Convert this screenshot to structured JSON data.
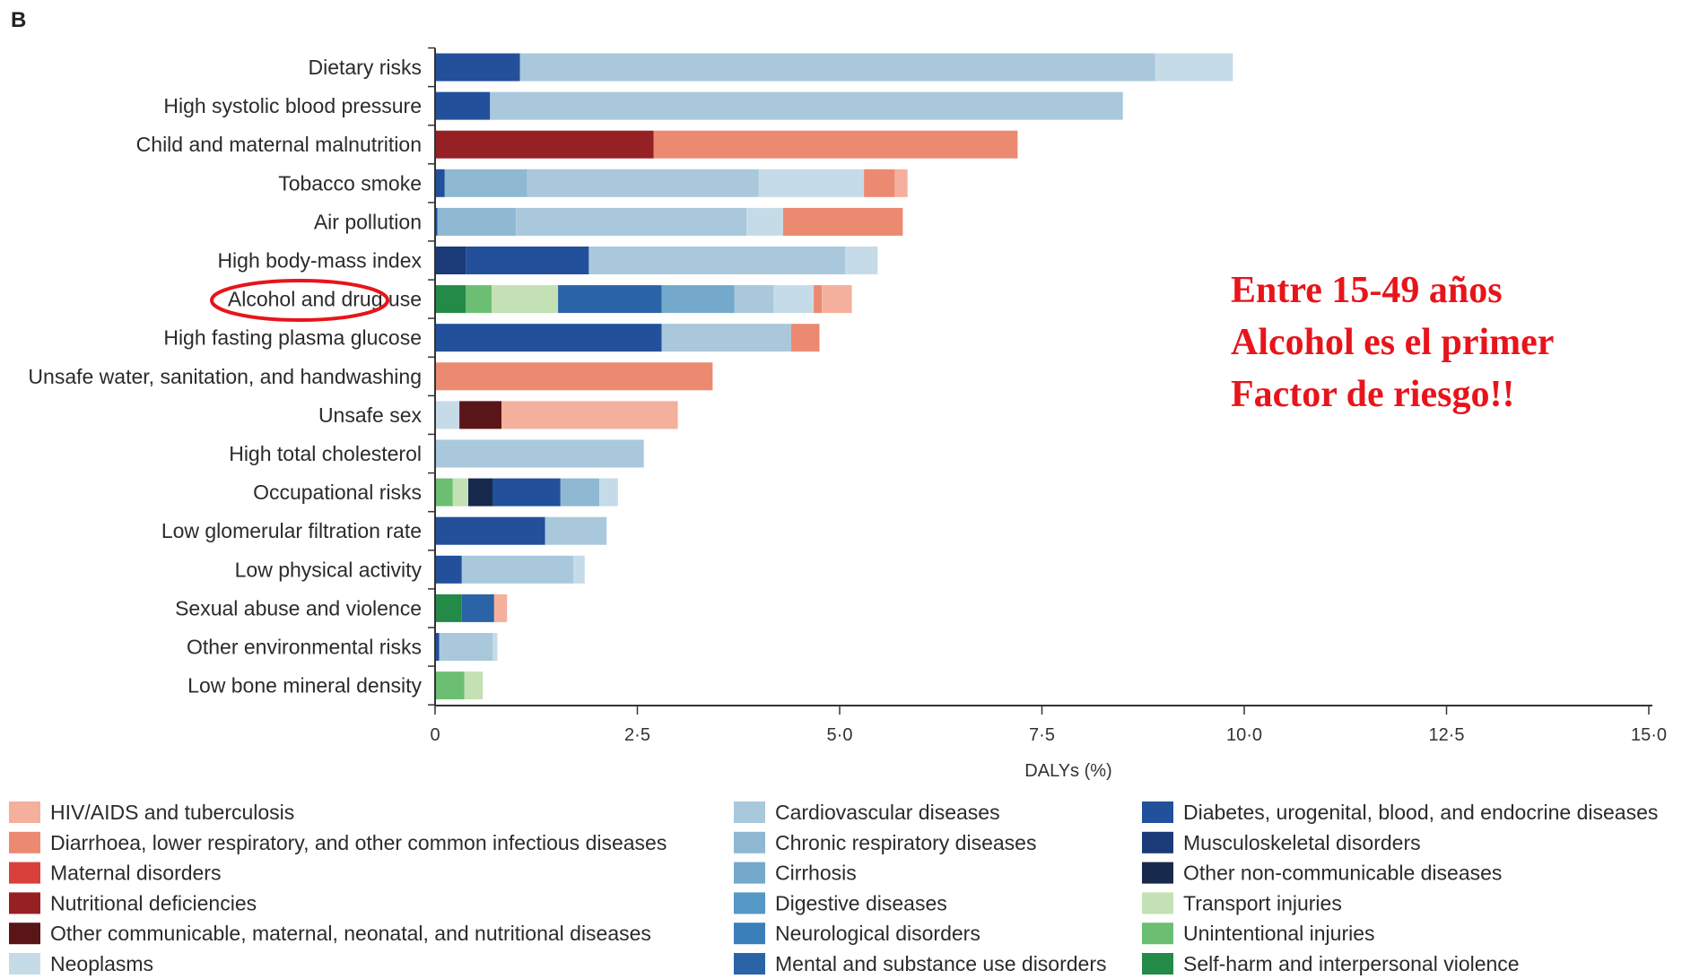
{
  "colors": {
    "HIV/AIDS and tuberculosis": "#f4b09c",
    "Diarrhoea, lower respiratory, and other common infectious diseases": "#eb8a71",
    "Maternal disorders": "#d9403b",
    "Nutritional deficiencies": "#962125",
    "Other communicable, maternal, neonatal, and nutritional diseases": "#5a1518",
    "Neoplasms": "#c6dbe8",
    "Cardiovascular diseases": "#a9c8dc",
    "Chronic respiratory diseases": "#8fb8d3",
    "Cirrhosis": "#74a9cb",
    "Digestive diseases": "#5597c5",
    "Neurological disorders": "#3a7fba",
    "Mental and substance use disorders": "#2a64a6",
    "Diabetes, urogenital, blood, and endocrine diseases": "#22509a",
    "Musculoskeletal disorders": "#1b3a78",
    "Other non-communicable diseases": "#172a4d",
    "Transport injuries": "#c3e1b4",
    "Unintentional injuries": "#6cbf72",
    "Self-harm and interpersonal violence": "#238a47"
  },
  "panel_label": "B",
  "annotation": {
    "line1": "Entre 15-49 años",
    "line2": "Alcohol es el primer",
    "line3": "Factor de riesgo!!"
  },
  "chart_data": {
    "type": "bar",
    "orientation": "horizontal",
    "stacked": true,
    "xlabel": "DALYs (%)",
    "xlim": [
      0,
      15
    ],
    "xticks": [
      "0",
      "2·5",
      "5·0",
      "7·5",
      "10·0",
      "12·5",
      "15·0"
    ],
    "xtick_values": [
      0,
      2.5,
      5,
      7.5,
      10,
      12.5,
      15
    ],
    "highlighted_category": "Alcohol and drug use",
    "categories": [
      {
        "name": "Dietary risks",
        "segments": [
          {
            "cause": "Diabetes, urogenital, blood, and endocrine diseases",
            "value": 1.05
          },
          {
            "cause": "Cardiovascular diseases",
            "value": 7.85
          },
          {
            "cause": "Neoplasms",
            "value": 0.96
          }
        ]
      },
      {
        "name": "High systolic blood pressure",
        "segments": [
          {
            "cause": "Diabetes, urogenital, blood, and endocrine diseases",
            "value": 0.68
          },
          {
            "cause": "Cardiovascular diseases",
            "value": 7.82
          }
        ]
      },
      {
        "name": "Child and maternal malnutrition",
        "segments": [
          {
            "cause": "Nutritional deficiencies",
            "value": 2.7
          },
          {
            "cause": "Diarrhoea, lower respiratory, and other common infectious diseases",
            "value": 4.5
          }
        ]
      },
      {
        "name": "Tobacco smoke",
        "segments": [
          {
            "cause": "Diabetes, urogenital, blood, and endocrine diseases",
            "value": 0.12
          },
          {
            "cause": "Chronic respiratory diseases",
            "value": 1.02
          },
          {
            "cause": "Cardiovascular diseases",
            "value": 2.86
          },
          {
            "cause": "Neoplasms",
            "value": 1.3
          },
          {
            "cause": "Diarrhoea, lower respiratory, and other common infectious diseases",
            "value": 0.38
          },
          {
            "cause": "HIV/AIDS and tuberculosis",
            "value": 0.16
          }
        ]
      },
      {
        "name": "Air pollution",
        "segments": [
          {
            "cause": "Diabetes, urogenital, blood, and endocrine diseases",
            "value": 0.03
          },
          {
            "cause": "Chronic respiratory diseases",
            "value": 0.97
          },
          {
            "cause": "Cardiovascular diseases",
            "value": 2.85
          },
          {
            "cause": "Neoplasms",
            "value": 0.45
          },
          {
            "cause": "Diarrhoea, lower respiratory, and other common infectious diseases",
            "value": 1.48
          }
        ]
      },
      {
        "name": "High body-mass index",
        "segments": [
          {
            "cause": "Musculoskeletal disorders",
            "value": 0.38
          },
          {
            "cause": "Diabetes, urogenital, blood, and endocrine diseases",
            "value": 1.52
          },
          {
            "cause": "Cardiovascular diseases",
            "value": 3.17
          },
          {
            "cause": "Neoplasms",
            "value": 0.4
          }
        ]
      },
      {
        "name": "Alcohol and drug use",
        "segments": [
          {
            "cause": "Self-harm and interpersonal violence",
            "value": 0.38
          },
          {
            "cause": "Unintentional injuries",
            "value": 0.32
          },
          {
            "cause": "Transport injuries",
            "value": 0.82
          },
          {
            "cause": "Mental and substance use disorders",
            "value": 1.28
          },
          {
            "cause": "Cirrhosis",
            "value": 0.9
          },
          {
            "cause": "Cardiovascular diseases",
            "value": 0.48
          },
          {
            "cause": "Neoplasms",
            "value": 0.5
          },
          {
            "cause": "Diarrhoea, lower respiratory, and other common infectious diseases",
            "value": 0.1
          },
          {
            "cause": "HIV/AIDS and tuberculosis",
            "value": 0.37
          }
        ]
      },
      {
        "name": "High fasting plasma glucose",
        "segments": [
          {
            "cause": "Diabetes, urogenital, blood, and endocrine diseases",
            "value": 2.8
          },
          {
            "cause": "Cardiovascular diseases",
            "value": 1.6
          },
          {
            "cause": "Diarrhoea, lower respiratory, and other common infectious diseases",
            "value": 0.35
          }
        ]
      },
      {
        "name": "Unsafe water, sanitation, and handwashing",
        "segments": [
          {
            "cause": "Diarrhoea, lower respiratory, and other common infectious diseases",
            "value": 3.43
          }
        ]
      },
      {
        "name": "Unsafe sex",
        "segments": [
          {
            "cause": "Neoplasms",
            "value": 0.3
          },
          {
            "cause": "Other communicable, maternal, neonatal, and nutritional diseases",
            "value": 0.52
          },
          {
            "cause": "HIV/AIDS and tuberculosis",
            "value": 2.18
          }
        ]
      },
      {
        "name": "High total cholesterol",
        "segments": [
          {
            "cause": "Cardiovascular diseases",
            "value": 2.58
          }
        ]
      },
      {
        "name": "Occupational risks",
        "segments": [
          {
            "cause": "Unintentional injuries",
            "value": 0.22
          },
          {
            "cause": "Transport injuries",
            "value": 0.19
          },
          {
            "cause": "Other non-communicable diseases",
            "value": 0.3
          },
          {
            "cause": "Diabetes, urogenital, blood, and endocrine diseases",
            "value": 0.84
          },
          {
            "cause": "Chronic respiratory diseases",
            "value": 0.48
          },
          {
            "cause": "Neoplasms",
            "value": 0.23
          }
        ]
      },
      {
        "name": "Low glomerular filtration rate",
        "segments": [
          {
            "cause": "Diabetes, urogenital, blood, and endocrine diseases",
            "value": 1.36
          },
          {
            "cause": "Cardiovascular diseases",
            "value": 0.76
          }
        ]
      },
      {
        "name": "Low physical activity",
        "segments": [
          {
            "cause": "Diabetes, urogenital, blood, and endocrine diseases",
            "value": 0.33
          },
          {
            "cause": "Cardiovascular diseases",
            "value": 1.38
          },
          {
            "cause": "Neoplasms",
            "value": 0.14
          }
        ]
      },
      {
        "name": "Sexual abuse and violence",
        "segments": [
          {
            "cause": "Self-harm and interpersonal violence",
            "value": 0.33
          },
          {
            "cause": "Mental and substance use disorders",
            "value": 0.4
          },
          {
            "cause": "HIV/AIDS and tuberculosis",
            "value": 0.16
          }
        ]
      },
      {
        "name": "Other environmental risks",
        "segments": [
          {
            "cause": "Diabetes, urogenital, blood, and endocrine diseases",
            "value": 0.05
          },
          {
            "cause": "Cardiovascular diseases",
            "value": 0.66
          },
          {
            "cause": "Neoplasms",
            "value": 0.06
          }
        ]
      },
      {
        "name": "Low bone mineral density",
        "segments": [
          {
            "cause": "Unintentional injuries",
            "value": 0.36
          },
          {
            "cause": "Transport injuries",
            "value": 0.23
          }
        ]
      }
    ],
    "legend": [
      "HIV/AIDS and tuberculosis",
      "Diarrhoea, lower respiratory, and other common infectious diseases",
      "Maternal disorders",
      "Nutritional deficiencies",
      "Other communicable, maternal, neonatal, and nutritional diseases",
      "Neoplasms",
      "Cardiovascular diseases",
      "Chronic respiratory diseases",
      "Cirrhosis",
      "Digestive diseases",
      "Neurological disorders",
      "Mental and substance use disorders",
      "Diabetes, urogenital, blood, and endocrine diseases",
      "Musculoskeletal disorders",
      "Other non-communicable diseases",
      "Transport injuries",
      "Unintentional injuries",
      "Self-harm and interpersonal violence"
    ]
  }
}
